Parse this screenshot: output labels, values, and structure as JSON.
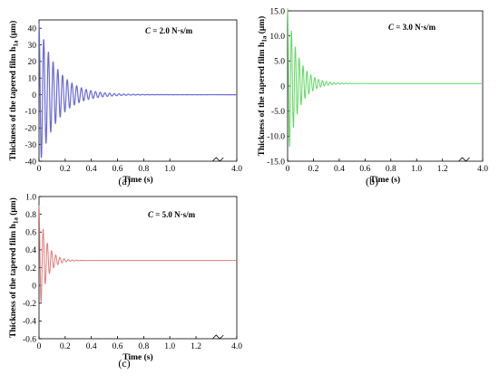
{
  "chart_data": [
    {
      "id": "a",
      "type": "line",
      "panel_label": "(a)",
      "annotation": {
        "prefix": "C",
        "text": " = 2.0 N·s/m"
      },
      "xlabel": "Time (s)",
      "ylabel": "Thickness of the tapered film h",
      "ylabel_sub": "1a",
      "ylabel_unit": " (μm)",
      "xlim": [
        0,
        4.0
      ],
      "ylim": [
        -40,
        45
      ],
      "xticks": [
        0,
        0.2,
        0.4,
        0.6,
        0.8,
        1.0,
        4.0
      ],
      "xtick_labels": [
        "0",
        "0.2",
        "0.4",
        "0.6",
        "0.8",
        "1.0",
        "4.0"
      ],
      "yticks": [
        -40,
        -30,
        -20,
        -10,
        0,
        10,
        20,
        30,
        40
      ],
      "ytick_labels": [
        "-40",
        "-30",
        "-20",
        "-10",
        "0",
        "10",
        "20",
        "30",
        "40"
      ],
      "axis_break": true,
      "grid": false,
      "color": "#6a6ad8",
      "series": [
        {
          "model": "damped_oscillation",
          "offset": 0,
          "amplitude": 43,
          "period_s": 0.036,
          "decay_per_s": 7.2,
          "t_end_s": 4.0,
          "peaks": [
            [
              0.0,
              43
            ],
            [
              0.018,
              -37
            ],
            [
              0.054,
              32
            ],
            [
              0.09,
              -27
            ],
            [
              0.126,
              22
            ],
            [
              0.162,
              18
            ],
            [
              0.2,
              12
            ],
            [
              0.3,
              6
            ],
            [
              0.4,
              2
            ],
            [
              0.5,
              0.5
            ],
            [
              0.6,
              0
            ]
          ]
        }
      ]
    },
    {
      "id": "b",
      "type": "line",
      "panel_label": "(b)",
      "annotation": {
        "prefix": "C",
        "text": " = 3.0 N·s/m"
      },
      "xlabel": "Time (s)",
      "ylabel": "Thickness of the tapered film h",
      "ylabel_sub": "1a",
      "ylabel_unit": " (μm)",
      "xlim": [
        0,
        4.0
      ],
      "ylim": [
        -15,
        15
      ],
      "xticks": [
        0,
        0.2,
        0.4,
        0.6,
        0.8,
        1.0,
        1.2,
        4.0
      ],
      "xtick_labels": [
        "0",
        "0.2",
        "0.4",
        "0.6",
        "0.8",
        "1.0",
        "1.2",
        "4.0"
      ],
      "yticks": [
        -15,
        -10,
        -5,
        0,
        5,
        10,
        15
      ],
      "ytick_labels": [
        "-15.0",
        "-10.0",
        "-5.0",
        "0",
        "5.0",
        "10.0",
        "15.0"
      ],
      "axis_break": true,
      "grid": false,
      "color": "#63d863",
      "series": [
        {
          "model": "damped_oscillation",
          "offset": 0.5,
          "amplitude": 15,
          "period_s": 0.03,
          "decay_per_s": 12,
          "t_end_s": 4.0,
          "peaks": [
            [
              0.0,
              -15
            ],
            [
              0.015,
              12
            ],
            [
              0.045,
              9
            ],
            [
              0.1,
              4
            ],
            [
              0.2,
              1.5
            ],
            [
              0.3,
              0.8
            ],
            [
              0.4,
              0.5
            ]
          ]
        }
      ]
    },
    {
      "id": "c",
      "type": "line",
      "panel_label": "(c)",
      "annotation": {
        "prefix": "C",
        "text": " = 5.0 N·s/m"
      },
      "xlabel": "Time (s)",
      "ylabel": "Thickness of the tapered film h",
      "ylabel_sub": "1a",
      "ylabel_unit": " (μm)",
      "xlim": [
        0,
        4.0
      ],
      "ylim": [
        -0.6,
        1.0
      ],
      "xticks": [
        0,
        0.2,
        0.4,
        0.6,
        0.8,
        1.0,
        1.2,
        4.0
      ],
      "xtick_labels": [
        "0",
        "0.2",
        "0.4",
        "0.6",
        "0.8",
        "1.0",
        "1.2",
        "4.0"
      ],
      "yticks": [
        -0.6,
        -0.4,
        -0.2,
        0,
        0.2,
        0.4,
        0.6,
        0.8,
        1.0
      ],
      "ytick_labels": [
        "-0.6",
        "-0.4",
        "-0.2",
        "0",
        "0.2",
        "0.4",
        "0.6",
        "0.8",
        "1.0"
      ],
      "axis_break": true,
      "grid": false,
      "color": "#e07b7b",
      "series": [
        {
          "model": "damped_oscillation",
          "offset": 0.28,
          "amplitude": 0.62,
          "period_s": 0.032,
          "decay_per_s": 18,
          "t_end_s": 4.0,
          "peaks": [
            [
              0.0,
              0.9
            ],
            [
              0.016,
              -0.4
            ],
            [
              0.032,
              0.75
            ],
            [
              0.08,
              0.5
            ],
            [
              0.12,
              0.35
            ],
            [
              0.2,
              0.28
            ]
          ]
        }
      ]
    }
  ]
}
